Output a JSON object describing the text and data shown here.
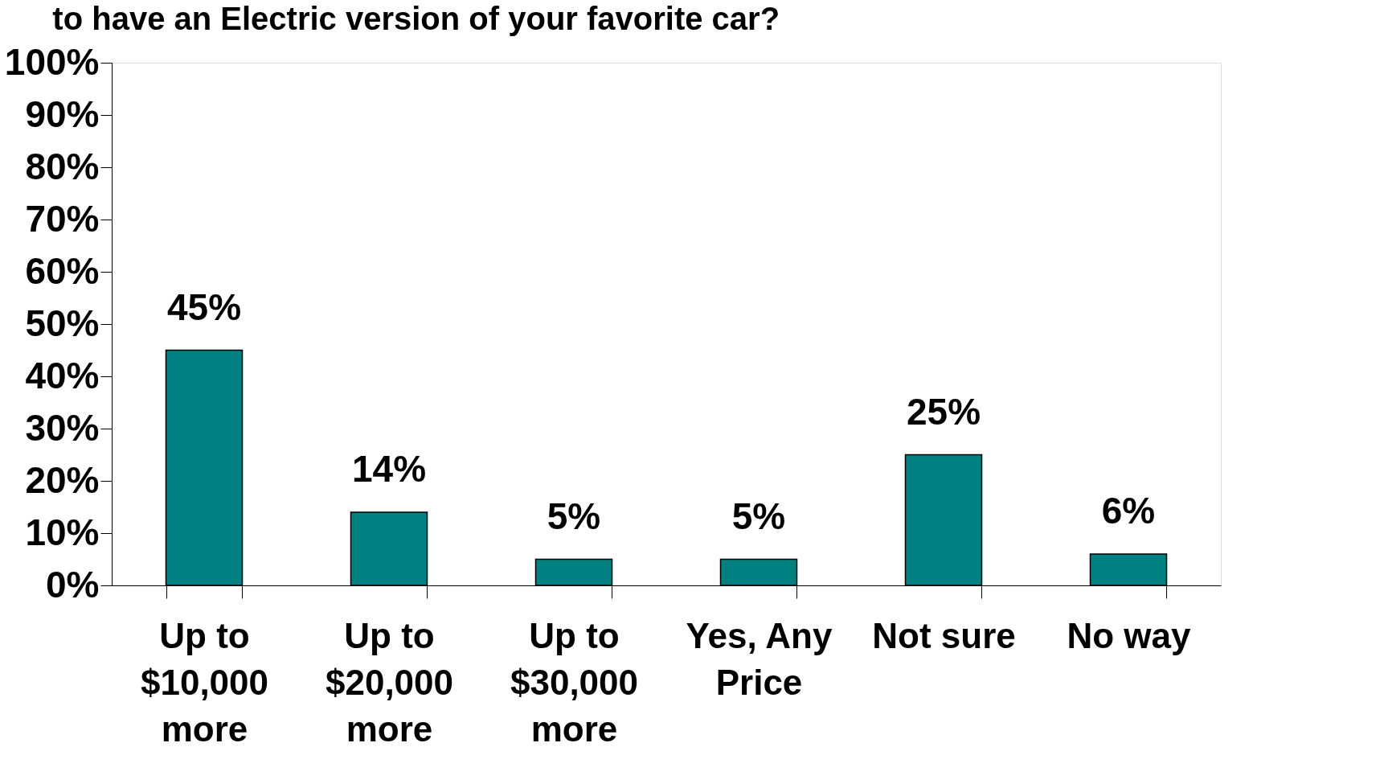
{
  "chart_data": {
    "type": "bar",
    "title": "to have an Electric version of your favorite car?",
    "categories": [
      "Up to\n$10,000\nmore",
      "Up to\n$20,000\nmore",
      "Up to\n$30,000\nmore",
      "Yes, Any\nPrice",
      "Not sure",
      "No way"
    ],
    "series": [
      {
        "color": "#008080",
        "values": [
          45,
          14,
          5,
          5,
          25,
          6
        ]
      }
    ],
    "value_labels": [
      "45%",
      "14%",
      "5%",
      "5%",
      "25%",
      "6%"
    ],
    "ylim": [
      0,
      100
    ],
    "yticks": [
      {
        "value": 0,
        "label": "0%"
      },
      {
        "value": 10,
        "label": "10%"
      },
      {
        "value": 20,
        "label": "20%"
      },
      {
        "value": 30,
        "label": "30%"
      },
      {
        "value": 40,
        "label": "40%"
      },
      {
        "value": 50,
        "label": "50%"
      },
      {
        "value": 60,
        "label": "60%"
      },
      {
        "value": 70,
        "label": "70%"
      },
      {
        "value": 80,
        "label": "80%"
      },
      {
        "value": 90,
        "label": "90%"
      },
      {
        "value": 100,
        "label": "100%"
      }
    ],
    "grid": false
  }
}
